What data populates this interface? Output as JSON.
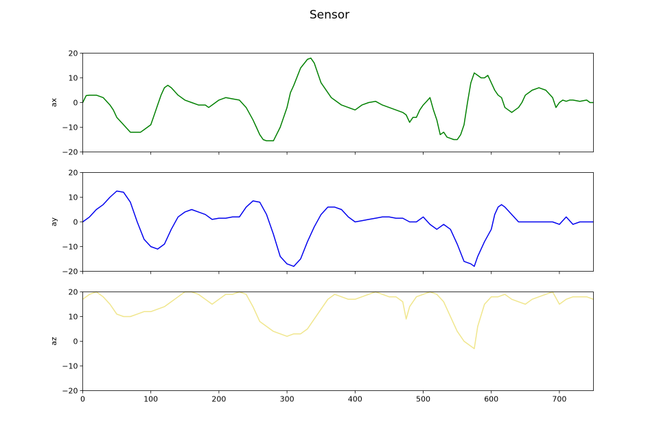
{
  "figure": {
    "title": "Sensor"
  },
  "chart_data": [
    {
      "type": "line",
      "title": "Sensor",
      "xlabel": "",
      "ylabel": "ax",
      "xlim": [
        0,
        750
      ],
      "ylim": [
        -20,
        20
      ],
      "grid": false,
      "color": "#008000",
      "x_ticks": [
        0,
        100,
        200,
        300,
        400,
        500,
        600,
        700
      ],
      "x_tick_labels_visible": false,
      "y_ticks": [
        -20,
        -10,
        0,
        10,
        20
      ],
      "series": [
        {
          "x": [
            0,
            5,
            10,
            20,
            30,
            40,
            45,
            50,
            60,
            70,
            80,
            85,
            90,
            100,
            105,
            110,
            115,
            120,
            125,
            130,
            140,
            150,
            160,
            170,
            180,
            185,
            190,
            200,
            210,
            220,
            230,
            240,
            250,
            255,
            260,
            265,
            270,
            280,
            290,
            300,
            305,
            310,
            320,
            330,
            335,
            340,
            345,
            350,
            355,
            360,
            365,
            370,
            380,
            390,
            400,
            410,
            420,
            430,
            440,
            450,
            460,
            470,
            475,
            480,
            485,
            490,
            495,
            500,
            505,
            510,
            515,
            520,
            525,
            530,
            535,
            540,
            545,
            550,
            555,
            560,
            565,
            570,
            575,
            580,
            585,
            590,
            595,
            600,
            605,
            610,
            615,
            620,
            625,
            630,
            635,
            640,
            645,
            650,
            655,
            660,
            670,
            680,
            690,
            695,
            700,
            705,
            710,
            715,
            720,
            730,
            740,
            745,
            750
          ],
          "y": [
            0,
            2.8,
            3,
            3,
            2,
            -1,
            -3,
            -6,
            -9,
            -12,
            -12,
            -12,
            -11,
            -9,
            -5,
            -1,
            3,
            6,
            7,
            6,
            3,
            1,
            0,
            -1,
            -1,
            -2,
            -1,
            1,
            2,
            1.5,
            1,
            -2,
            -7,
            -10,
            -13,
            -15,
            -15.5,
            -15.5,
            -10,
            -2,
            4,
            7,
            14,
            17.5,
            18,
            16,
            12,
            8,
            6,
            4,
            2,
            1,
            -1,
            -2,
            -3,
            -1,
            0,
            0.5,
            -1,
            -2,
            -3,
            -4,
            -5,
            -8,
            -6,
            -6,
            -3,
            -1,
            0.5,
            2,
            -3,
            -7,
            -13,
            -12,
            -14,
            -14.5,
            -15,
            -15,
            -13,
            -9,
            0,
            8,
            12,
            11,
            10,
            10,
            11,
            8,
            5,
            3,
            2,
            -2,
            -3,
            -4,
            -3,
            -2,
            0,
            3,
            4,
            5,
            6,
            5,
            2,
            -2,
            0,
            1,
            0.5,
            1,
            1,
            0.5,
            1,
            0,
            0
          ]
        }
      ]
    },
    {
      "type": "line",
      "title": "",
      "xlabel": "",
      "ylabel": "ay",
      "xlim": [
        0,
        750
      ],
      "ylim": [
        -20,
        20
      ],
      "grid": false,
      "color": "#0000ee",
      "x_ticks": [
        0,
        100,
        200,
        300,
        400,
        500,
        600,
        700
      ],
      "x_tick_labels_visible": false,
      "y_ticks": [
        -20,
        -10,
        0,
        10,
        20
      ],
      "series": [
        {
          "x": [
            0,
            10,
            20,
            30,
            40,
            50,
            60,
            70,
            80,
            90,
            100,
            110,
            120,
            130,
            140,
            150,
            160,
            170,
            180,
            190,
            200,
            210,
            220,
            230,
            240,
            250,
            260,
            270,
            280,
            290,
            300,
            310,
            320,
            330,
            340,
            350,
            360,
            370,
            380,
            390,
            400,
            410,
            420,
            430,
            440,
            450,
            460,
            470,
            480,
            490,
            500,
            510,
            520,
            530,
            540,
            550,
            560,
            570,
            575,
            580,
            590,
            600,
            605,
            610,
            615,
            620,
            630,
            640,
            650,
            660,
            670,
            680,
            690,
            700,
            710,
            720,
            730,
            740,
            750
          ],
          "y": [
            0,
            2,
            5,
            7,
            10,
            12.5,
            12,
            8,
            0,
            -7,
            -10,
            -11,
            -9,
            -3,
            2,
            4,
            5,
            4,
            3,
            1,
            1.5,
            1.5,
            2,
            2,
            6,
            8.5,
            8,
            3,
            -5,
            -14,
            -17,
            -18,
            -15,
            -8,
            -2,
            3,
            6,
            6,
            5,
            2,
            0,
            0.5,
            1,
            1.5,
            2,
            2,
            1.5,
            1.5,
            0,
            0,
            2,
            -1,
            -3,
            -1,
            -3,
            -9,
            -16,
            -17,
            -18,
            -14,
            -8,
            -3,
            3,
            6,
            7,
            6,
            3,
            0,
            0,
            0,
            0,
            0,
            0,
            -1,
            2,
            -1,
            0,
            0,
            0
          ]
        }
      ]
    },
    {
      "type": "line",
      "title": "",
      "xlabel": "",
      "ylabel": "az",
      "xlim": [
        0,
        750
      ],
      "ylim": [
        -20,
        20
      ],
      "grid": false,
      "color": "#f0e68c",
      "x_ticks": [
        0,
        100,
        200,
        300,
        400,
        500,
        600,
        700
      ],
      "x_tick_labels_visible": true,
      "y_ticks": [
        -20,
        -10,
        0,
        10,
        20
      ],
      "series": [
        {
          "x": [
            0,
            10,
            20,
            30,
            40,
            50,
            60,
            70,
            80,
            90,
            100,
            110,
            120,
            130,
            140,
            150,
            160,
            170,
            180,
            190,
            200,
            210,
            220,
            230,
            240,
            250,
            260,
            270,
            280,
            290,
            300,
            310,
            320,
            330,
            340,
            350,
            360,
            370,
            380,
            390,
            400,
            410,
            420,
            430,
            440,
            450,
            460,
            470,
            475,
            480,
            490,
            500,
            510,
            520,
            530,
            540,
            545,
            550,
            555,
            560,
            565,
            570,
            575,
            580,
            590,
            600,
            610,
            620,
            630,
            640,
            650,
            660,
            670,
            680,
            690,
            700,
            710,
            720,
            730,
            740,
            750
          ],
          "y": [
            17,
            19,
            20,
            18,
            15,
            11,
            10,
            10,
            11,
            12,
            12,
            13,
            14,
            16,
            18,
            20,
            20,
            19,
            17,
            15,
            17,
            19,
            19,
            20,
            19,
            14,
            8,
            6,
            4,
            3,
            2,
            3,
            3,
            5,
            9,
            13,
            17,
            19,
            18,
            17,
            17,
            18,
            19,
            20,
            19,
            18,
            18,
            16,
            9,
            14,
            18,
            19,
            20,
            19,
            16,
            10,
            7,
            4,
            2,
            0,
            -1,
            -2,
            -3,
            6,
            15,
            18,
            18,
            19,
            17,
            16,
            15,
            17,
            18,
            19,
            20,
            15,
            17,
            18,
            18,
            18,
            17
          ]
        }
      ]
    }
  ]
}
